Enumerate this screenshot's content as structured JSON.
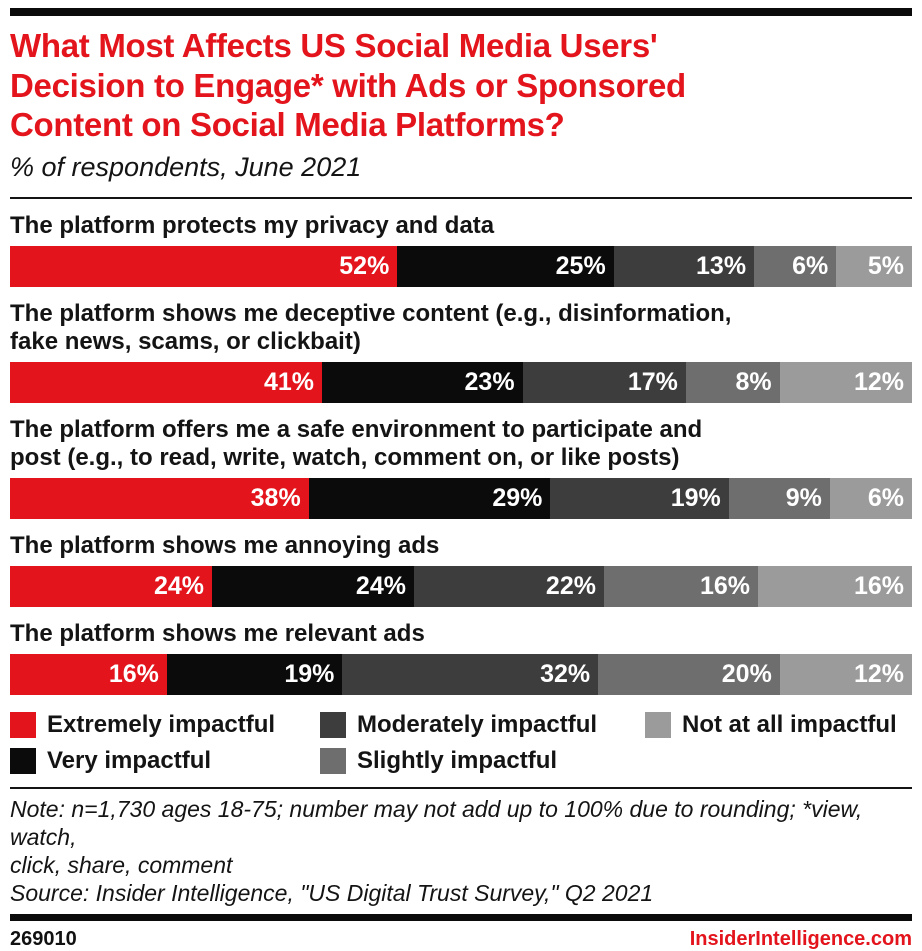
{
  "header": {
    "title": "What Most Affects US Social Media Users'\nDecision to Engage* with Ads or Sponsored\nContent on Social Media Platforms?",
    "subtitle": "% of respondents, June 2021"
  },
  "colors": {
    "accent_red": "#e3141c",
    "black": "#0b0b0b",
    "dark_gray": "#3d3d3d",
    "medium_gray": "#6e6e6e",
    "light_gray": "#9b9b9b"
  },
  "chart_data": {
    "type": "bar",
    "orientation": "horizontal-stacked",
    "unit": "%",
    "value_suffix": "%",
    "grid": false,
    "legend_position": "bottom",
    "categories": [
      "The platform protects my privacy and data",
      "The platform shows me deceptive content (e.g., disinformation,\nfake news, scams, or clickbait)",
      "The platform offers me a safe environment to participate and\npost (e.g., to read, write, watch, comment on, or like posts)",
      "The platform shows me annoying ads",
      "The platform shows me relevant ads"
    ],
    "series": [
      {
        "name": "Extremely impactful",
        "color": "#e3141c",
        "values": [
          52,
          41,
          38,
          24,
          16
        ]
      },
      {
        "name": "Very impactful",
        "color": "#0b0b0b",
        "values": [
          25,
          23,
          29,
          24,
          19
        ]
      },
      {
        "name": "Moderately impactful",
        "color": "#3d3d3d",
        "values": [
          13,
          17,
          19,
          22,
          32
        ]
      },
      {
        "name": "Slightly impactful",
        "color": "#6e6e6e",
        "values": [
          6,
          8,
          9,
          16,
          20
        ]
      },
      {
        "name": "Not at all impactful",
        "color": "#9b9b9b",
        "values": [
          5,
          12,
          6,
          16,
          12
        ]
      }
    ]
  },
  "legend": {
    "items": [
      {
        "label": "Extremely impactful",
        "color": "#e3141c"
      },
      {
        "label": "Moderately impactful",
        "color": "#3d3d3d"
      },
      {
        "label": "Not at all impactful",
        "color": "#9b9b9b"
      },
      {
        "label": "Very impactful",
        "color": "#0b0b0b"
      },
      {
        "label": "Slightly impactful",
        "color": "#6e6e6e"
      }
    ]
  },
  "footer": {
    "note": "Note: n=1,730 ages 18-75; number may not add up to 100% due to rounding; *view, watch,\nclick, share, comment",
    "source": "Source: Insider Intelligence, \"US Digital Trust Survey,\" Q2 2021",
    "chart_id": "269010",
    "brand": "InsiderIntelligence.com"
  }
}
